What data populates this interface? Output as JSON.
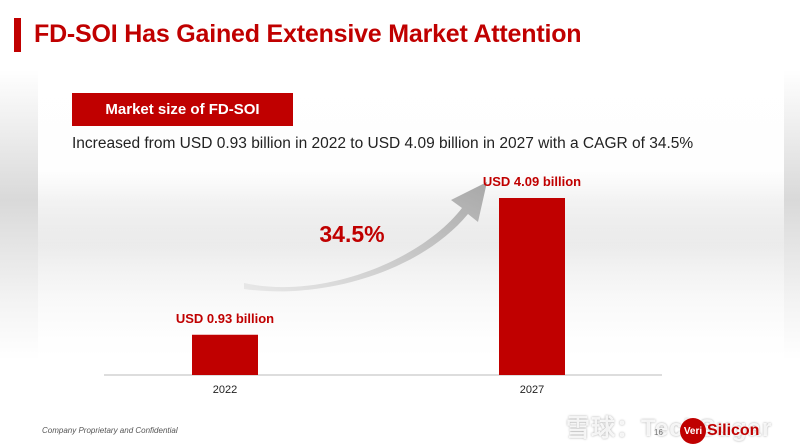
{
  "slide": {
    "title": "FD-SOI Has Gained Extensive Market Attention",
    "section_label": "Market size of FD-SOI",
    "description": "Increased from USD 0.93 billion in 2022 to USD 4.09 billion in 2027 with a CAGR of 34.5%",
    "footer": "Company Proprietary and Confidential",
    "page_number": "16",
    "logo_mark": "Veri",
    "logo_text": "Silicon",
    "watermark": "雪球：TechSugar"
  },
  "colors": {
    "accent": "#c00000",
    "arrow": "#bdbdbd"
  },
  "chart_data": {
    "type": "bar",
    "title": "Market size of FD-SOI",
    "categories": [
      "2022",
      "2027"
    ],
    "values": [
      0.93,
      4.09
    ],
    "data_labels": [
      "USD 0.93 billion",
      "USD 4.09 billion"
    ],
    "units": "USD billion",
    "ylim": [
      0,
      4.09
    ],
    "annotation": "34.5%",
    "annotation_meaning": "CAGR",
    "grid": false,
    "legend": "none"
  }
}
